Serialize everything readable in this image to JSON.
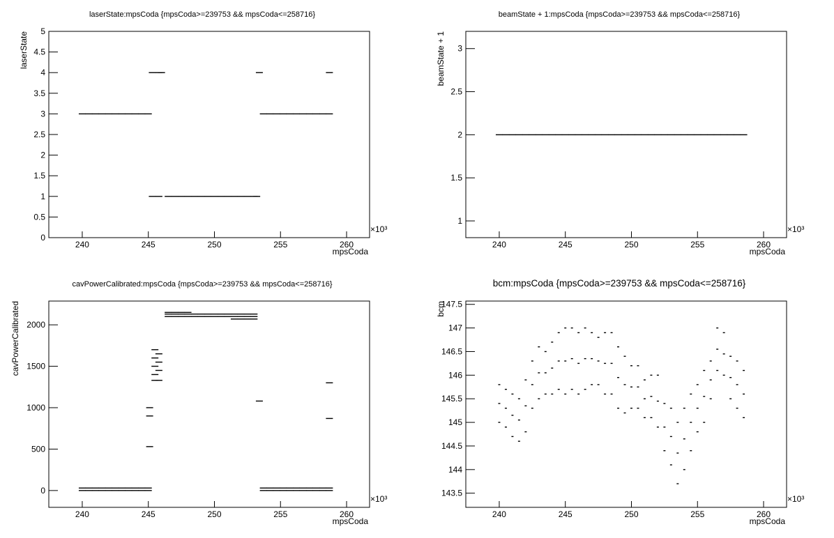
{
  "chart_data": [
    {
      "type": "scatter",
      "marker": "dash",
      "color": "#000000",
      "title": "laserState:mpsCoda {mpsCoda>=239753 && mpsCoda<=258716}",
      "x_label": "mpsCoda",
      "y_label": "laserState",
      "x_exponent_label": "×10³",
      "xlim": [
        237.47,
        261.74
      ],
      "xticks": [
        240,
        245,
        250,
        255,
        260
      ],
      "ylim": [
        0,
        5
      ],
      "yticks": [
        0,
        0.5,
        1,
        1.5,
        2,
        2.5,
        3,
        3.5,
        4,
        4.5,
        5
      ],
      "x": [
        240,
        240.5,
        241,
        241.5,
        242,
        242.5,
        243,
        243.5,
        244,
        244.5,
        245,
        245.3,
        245.8,
        246.0,
        245.3,
        245.8,
        246.5,
        247,
        247.5,
        248,
        248.5,
        249,
        249.5,
        250,
        250.5,
        251,
        251.5,
        252,
        252.5,
        253,
        253.2,
        253.7,
        254.2,
        254.7,
        255.2,
        255.7,
        256.2,
        256.7,
        257.2,
        257.7,
        258.2,
        258.7,
        253.4,
        258.7
      ],
      "values": [
        3,
        3,
        3,
        3,
        3,
        3,
        3,
        3,
        3,
        3,
        3,
        4,
        4,
        4,
        1,
        1,
        1,
        1,
        1,
        1,
        1,
        1,
        1,
        1,
        1,
        1,
        1,
        1,
        1,
        1,
        1,
        3,
        3,
        3,
        3,
        3,
        3,
        3,
        3,
        3,
        3,
        3,
        4,
        4
      ]
    },
    {
      "type": "scatter",
      "marker": "dash",
      "color": "#000000",
      "title": "beamState + 1:mpsCoda {mpsCoda>=239753 && mpsCoda<=258716}",
      "x_label": "mpsCoda",
      "y_label": "beamState + 1",
      "x_exponent_label": "×10³",
      "xlim": [
        237.47,
        261.74
      ],
      "xticks": [
        240,
        245,
        250,
        255,
        260
      ],
      "ylim": [
        0.806,
        3.2
      ],
      "yticks": [
        1,
        1.5,
        2,
        2.5,
        3
      ],
      "x": [
        240,
        240.5,
        241,
        241.5,
        242,
        242.5,
        243,
        243.5,
        244,
        244.5,
        245,
        245.5,
        246,
        246.5,
        247,
        247.5,
        248,
        248.5,
        249,
        249.5,
        250,
        250.5,
        251,
        251.5,
        252,
        252.5,
        253,
        253.5,
        254,
        254.5,
        255,
        255.5,
        256,
        256.5,
        257,
        257.5,
        258,
        258.5
      ],
      "values": [
        2,
        2,
        2,
        2,
        2,
        2,
        2,
        2,
        2,
        2,
        2,
        2,
        2,
        2,
        2,
        2,
        2,
        2,
        2,
        2,
        2,
        2,
        2,
        2,
        2,
        2,
        2,
        2,
        2,
        2,
        2,
        2,
        2,
        2,
        2,
        2,
        2,
        2
      ]
    },
    {
      "type": "scatter",
      "marker": "dash",
      "color": "#000000",
      "title": "cavPowerCalibrated:mpsCoda {mpsCoda>=239753 && mpsCoda<=258716}",
      "x_label": "mpsCoda",
      "y_label": "cavPowerCalibrated",
      "x_exponent_label": "×10³",
      "xlim": [
        237.47,
        261.74
      ],
      "xticks": [
        240,
        245,
        250,
        255,
        260
      ],
      "ylim": [
        -203,
        2287
      ],
      "yticks": [
        0,
        500,
        1000,
        1500,
        2000
      ],
      "x": [
        240,
        240.5,
        241,
        241.5,
        242,
        242.5,
        243,
        243.5,
        244,
        244.5,
        245,
        240,
        240.5,
        241,
        241.5,
        242,
        242.5,
        243,
        243.5,
        244,
        244.5,
        245,
        245.5,
        245.5,
        245.5,
        245.5,
        245.5,
        245.8,
        245.8,
        245.8,
        245.8,
        246.5,
        247,
        247.5,
        248,
        248.5,
        249,
        249.5,
        250,
        250.5,
        251,
        251.5,
        252,
        252.5,
        253,
        246.5,
        247,
        247.5,
        248,
        248.5,
        249,
        249.5,
        250,
        250.5,
        251,
        251.5,
        252,
        252.5,
        253,
        251.5,
        252,
        252.5,
        253,
        246.5,
        247,
        247.5,
        248,
        253.7,
        254.2,
        254.7,
        255.2,
        255.7,
        256.2,
        256.7,
        257.2,
        257.7,
        258.2,
        258.7,
        253.7,
        254.2,
        254.7,
        255.2,
        255.7,
        256.2,
        256.7,
        257.2,
        257.7,
        258.2,
        258.7,
        245.1,
        245.1,
        245.1,
        253.4,
        258.7,
        258.7
      ],
      "values": [
        0,
        0,
        0,
        0,
        0,
        0,
        0,
        0,
        0,
        0,
        0,
        30,
        30,
        30,
        30,
        30,
        30,
        30,
        30,
        30,
        30,
        30,
        1330,
        1400,
        1500,
        1600,
        1700,
        1330,
        1450,
        1550,
        1650,
        2100,
        2100,
        2100,
        2100,
        2100,
        2100,
        2100,
        2100,
        2100,
        2100,
        2100,
        2100,
        2100,
        2100,
        2130,
        2130,
        2130,
        2130,
        2130,
        2130,
        2130,
        2130,
        2130,
        2130,
        2130,
        2130,
        2130,
        2130,
        2070,
        2070,
        2070,
        2070,
        2150,
        2150,
        2150,
        2150,
        0,
        0,
        0,
        0,
        0,
        0,
        0,
        0,
        0,
        0,
        0,
        30,
        30,
        30,
        30,
        30,
        30,
        30,
        30,
        30,
        30,
        30,
        530,
        900,
        1000,
        1080,
        1300,
        870
      ]
    },
    {
      "type": "scatter",
      "marker": "dot",
      "color": "#000000",
      "title": "bcm:mpsCoda {mpsCoda>=239753 && mpsCoda<=258716}",
      "x_label": "mpsCoda",
      "y_label": "bcm",
      "x_exponent_label": "×10³",
      "xlim": [
        237.47,
        261.74
      ],
      "xticks": [
        240,
        245,
        250,
        255,
        260
      ],
      "ylim": [
        143.2,
        147.57
      ],
      "yticks": [
        143.5,
        144,
        144.5,
        145,
        145.5,
        146,
        146.5,
        147,
        147.5
      ],
      "x": [
        240,
        240.5,
        241,
        241.5,
        242,
        242.5,
        243,
        243.5,
        244,
        244.5,
        245,
        245.5,
        246,
        246.5,
        247,
        247.5,
        248,
        248.5,
        249,
        249.5,
        250,
        250.5,
        251,
        251.5,
        252,
        252.5,
        253,
        253.5,
        254,
        254.5,
        255,
        255.5,
        256,
        256.5,
        257,
        257.5,
        258,
        258.5,
        240,
        240.5,
        241,
        241.5,
        242,
        242.5,
        243,
        243.5,
        244,
        244.5,
        245,
        245.5,
        246,
        246.5,
        247,
        247.5,
        248,
        248.5,
        249,
        249.5,
        250,
        250.5,
        251,
        251.5,
        252,
        252.5,
        253,
        253.5,
        254,
        254.5,
        255,
        255.5,
        256,
        256.5,
        257,
        257.5,
        258,
        258.5,
        240,
        240.5,
        241,
        241.5,
        242,
        242.5,
        243,
        243.5,
        244,
        244.5,
        245,
        245.5,
        246,
        246.5,
        247,
        247.5,
        248,
        248.5,
        249,
        249.5,
        250,
        250.5,
        251,
        251.5,
        252,
        252.5,
        253,
        253.5,
        254,
        254.5,
        255,
        255.5,
        256,
        256.5,
        257,
        257.5,
        258,
        258.5
      ],
      "values": [
        145.0,
        144.9,
        144.7,
        144.6,
        144.8,
        145.3,
        145.5,
        145.6,
        145.6,
        145.7,
        145.6,
        145.7,
        145.6,
        145.7,
        145.8,
        145.8,
        145.6,
        145.6,
        145.3,
        145.2,
        145.3,
        145.3,
        145.1,
        145.1,
        144.9,
        144.4,
        144.1,
        143.7,
        144.0,
        144.4,
        144.8,
        145.0,
        145.5,
        146.1,
        146.0,
        145.5,
        145.3,
        145.1,
        145.4,
        145.3,
        145.15,
        145.05,
        145.35,
        145.8,
        146.05,
        146.05,
        146.15,
        146.3,
        146.3,
        146.35,
        146.25,
        146.35,
        146.35,
        146.3,
        146.25,
        146.25,
        145.95,
        145.8,
        145.75,
        145.75,
        145.5,
        145.55,
        145.45,
        144.9,
        144.7,
        144.35,
        144.65,
        145.0,
        145.3,
        145.55,
        145.9,
        146.55,
        146.45,
        145.95,
        145.8,
        145.6,
        145.8,
        145.7,
        145.6,
        145.5,
        145.9,
        146.3,
        146.6,
        146.5,
        146.7,
        146.9,
        147.0,
        147.0,
        146.9,
        147.0,
        146.9,
        146.8,
        146.9,
        146.9,
        146.6,
        146.4,
        146.2,
        146.2,
        145.9,
        146.0,
        146.0,
        145.4,
        145.3,
        145.0,
        145.3,
        145.6,
        145.8,
        146.1,
        146.3,
        147.0,
        146.9,
        146.4,
        146.3,
        146.1
      ]
    }
  ]
}
